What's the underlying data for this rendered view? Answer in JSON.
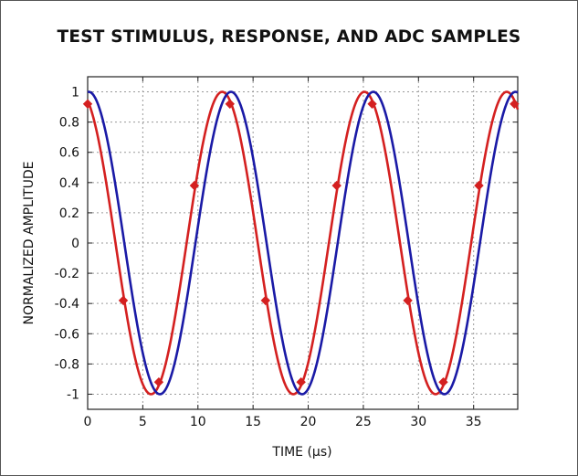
{
  "chart_data": {
    "type": "line",
    "title": "TEST STIMULUS, RESPONSE, AND ADC SAMPLES",
    "xlabel": "TIME (µs)",
    "ylabel": "NORMALIZED AMPLITUDE",
    "xlim": [
      0,
      39
    ],
    "ylim": [
      -1.1,
      1.1
    ],
    "xticks": [
      0,
      5,
      10,
      15,
      20,
      25,
      30,
      35
    ],
    "yticks": [
      1,
      0.8,
      0.6,
      0.4,
      0.2,
      0,
      -0.2,
      -0.4,
      -0.6,
      -0.8,
      -1
    ],
    "ytick_labels": [
      "1",
      "0.8",
      "0.6",
      "0.4",
      "0.2",
      "0",
      "-0.2",
      "-0.4",
      "-0.6",
      "-0.8",
      "-1"
    ],
    "grid": true,
    "series": [
      {
        "kind": "curve",
        "period": 12.9,
        "x_of_first_peak": 12.2,
        "color": "#d42020"
      },
      {
        "kind": "curve",
        "period": 12.9,
        "x_of_first_peak": 13.0,
        "color": "#1a1aa6"
      },
      {
        "kind": "samples",
        "marker": "diamond",
        "color": "#d42020",
        "x": [
          0,
          3.23,
          6.45,
          9.68,
          12.9,
          16.13,
          19.35,
          22.58,
          25.8,
          29.03,
          32.25,
          35.48,
          38.7
        ],
        "y": [
          0.92,
          -0.38,
          -0.92,
          0.38,
          0.92,
          -0.38,
          -0.92,
          0.38,
          0.92,
          -0.38,
          -0.92,
          0.38,
          0.92
        ]
      }
    ]
  }
}
